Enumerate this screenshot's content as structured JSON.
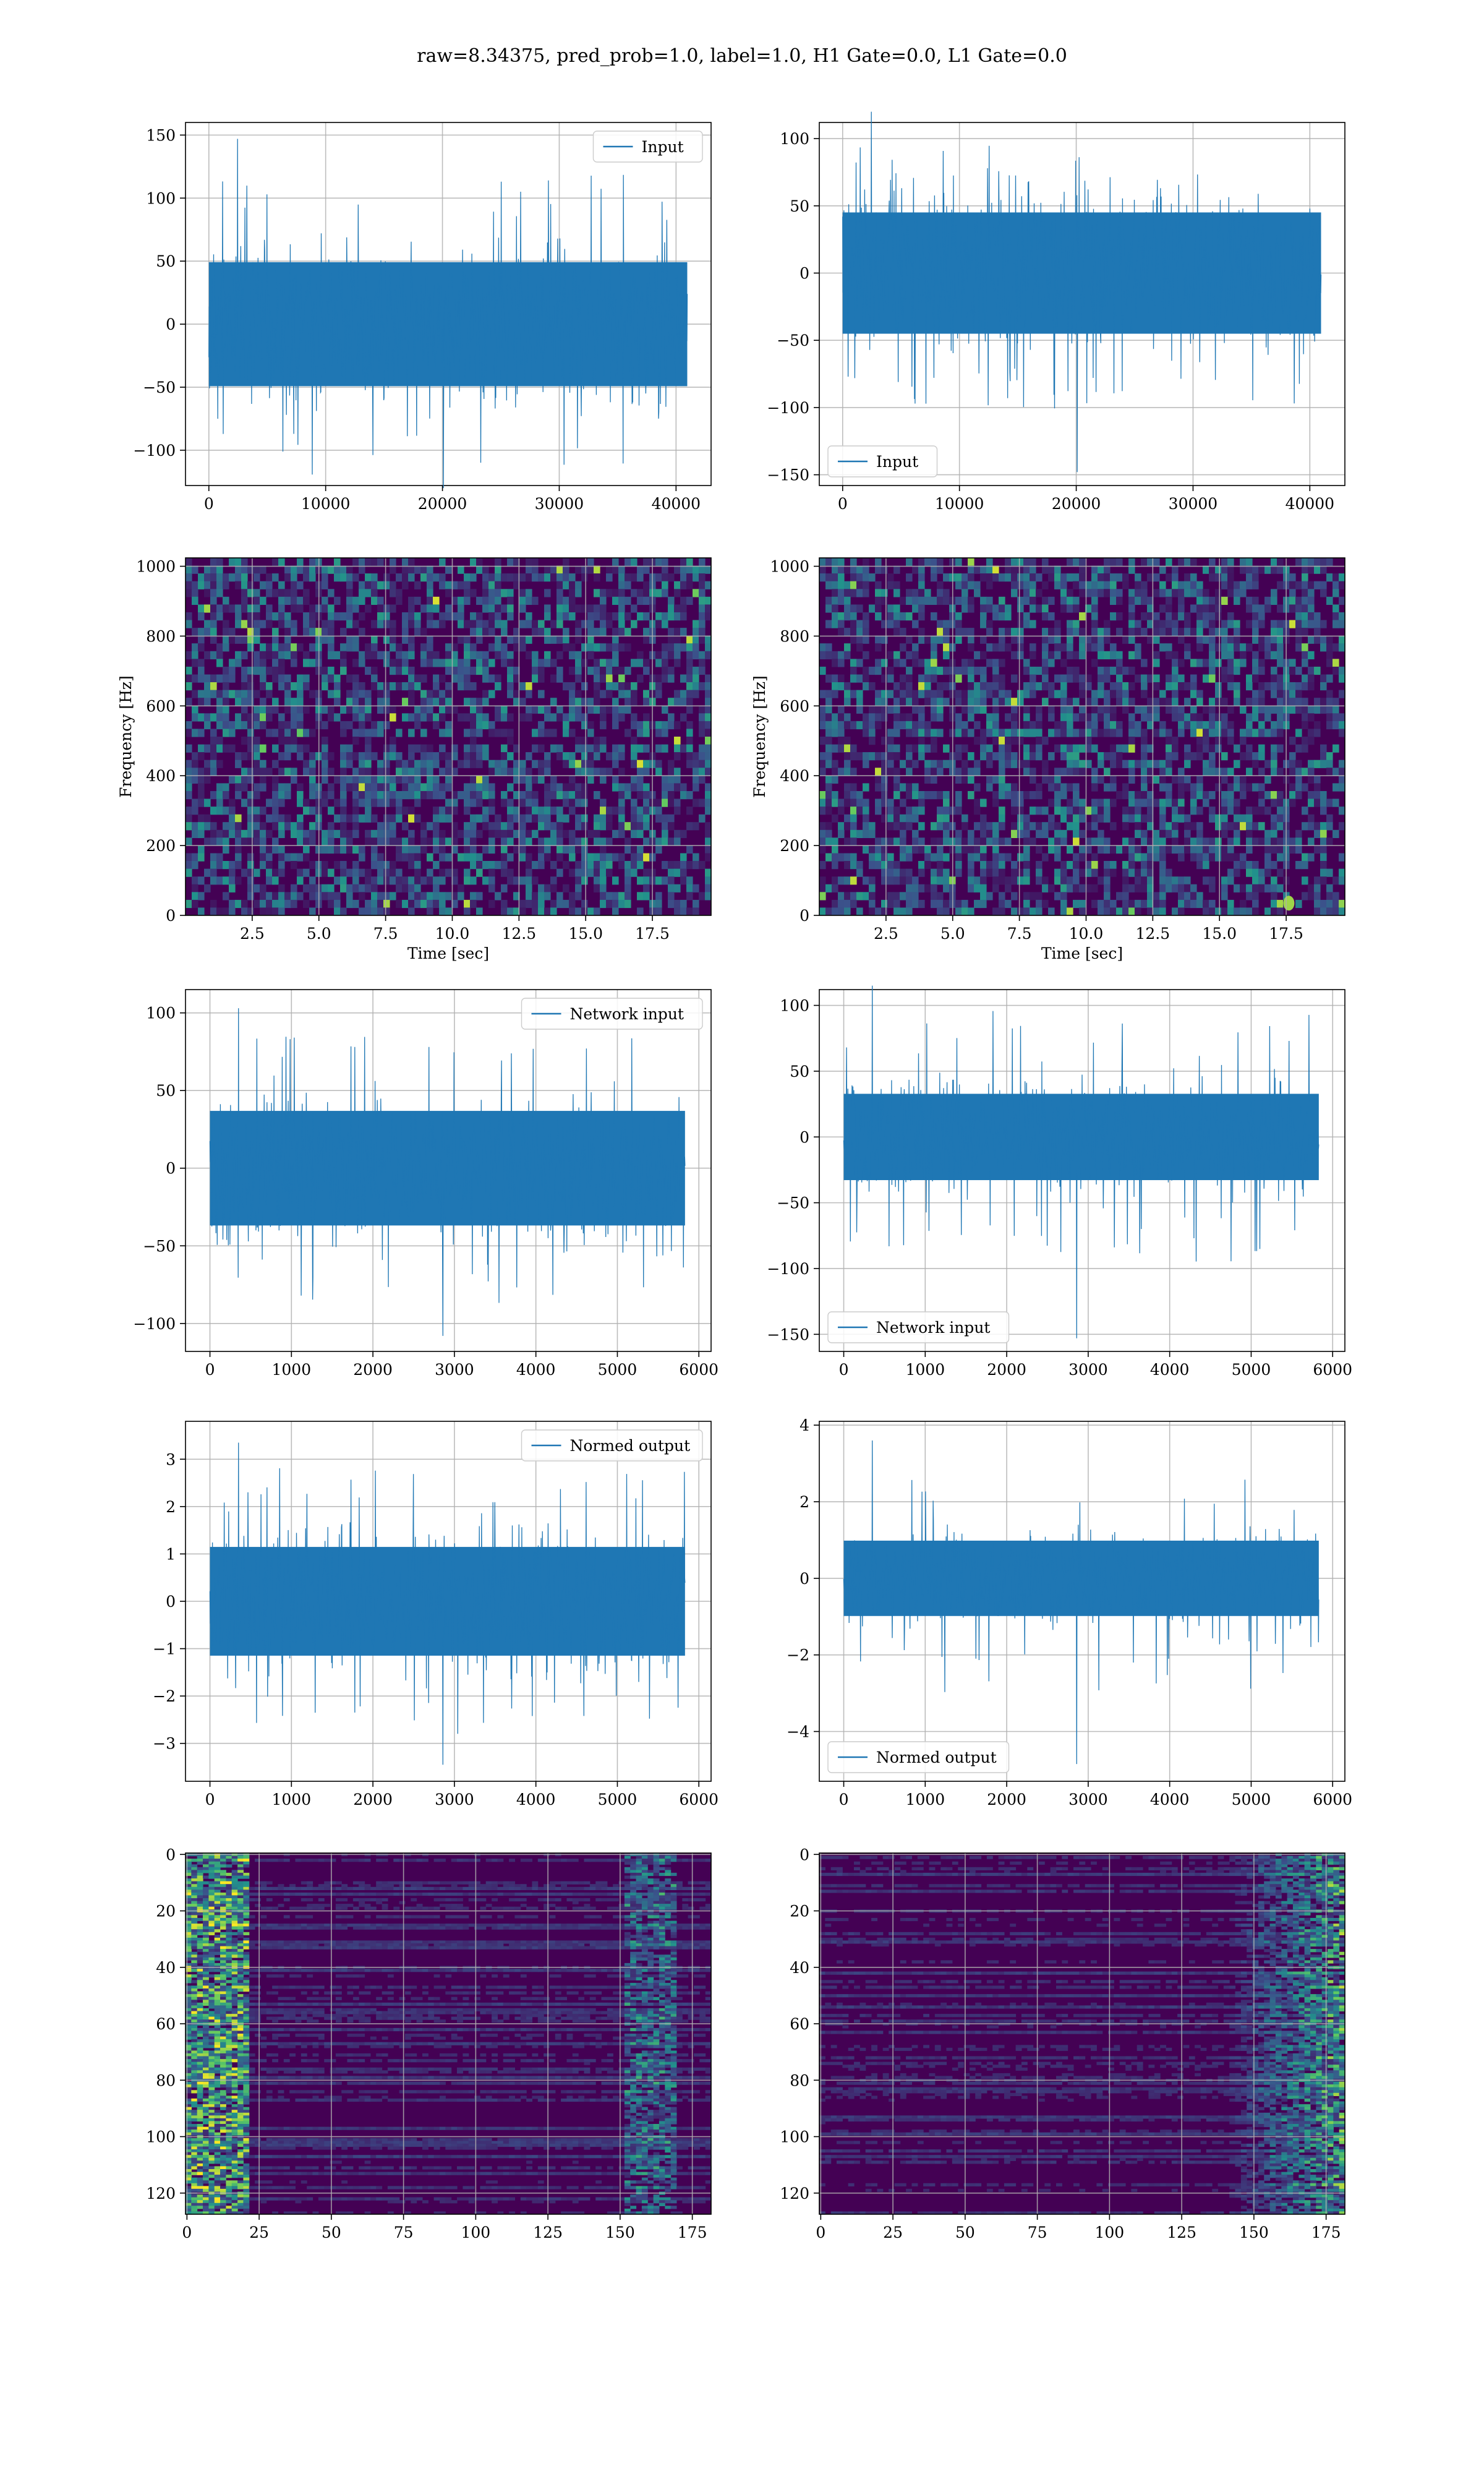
{
  "figure": {
    "title": "raw=8.34375, pred_prob=1.0, label=1.0, H1 Gate=0.0, L1 Gate=0.0"
  },
  "colors": {
    "line": "#1f77b4",
    "grid": "#b0b0b0",
    "viridis_dark": "#440154",
    "viridis_mid": "#21918c",
    "viridis_bright": "#fde725"
  },
  "chart_data": [
    {
      "id": "input_h1",
      "type": "line",
      "series": [
        {
          "name": "Input",
          "envelope_low": -60,
          "envelope_high": 60,
          "peak_max": 147,
          "peak_min": -130
        }
      ],
      "xlim": [
        -2000,
        43000
      ],
      "ylim": [
        -128,
        160
      ],
      "xticks": [
        0,
        10000,
        20000,
        30000,
        40000
      ],
      "yticks": [
        -100,
        -50,
        0,
        50,
        100,
        150
      ],
      "xlabel": "",
      "ylabel": "",
      "legend": "top-right",
      "grid": true
    },
    {
      "id": "input_l1",
      "type": "line",
      "series": [
        {
          "name": "Input",
          "envelope_low": -55,
          "envelope_high": 55,
          "peak_max": 120,
          "peak_min": -148
        }
      ],
      "xlim": [
        -2000,
        43000
      ],
      "ylim": [
        -158,
        112
      ],
      "xticks": [
        0,
        10000,
        20000,
        30000,
        40000
      ],
      "yticks": [
        -150,
        -100,
        -50,
        0,
        50,
        100
      ],
      "xlabel": "",
      "ylabel": "",
      "legend": "bottom-left",
      "grid": true
    },
    {
      "id": "spec_h1",
      "type": "heatmap",
      "xlim": [
        0,
        19.7
      ],
      "ylim": [
        0,
        1024
      ],
      "xticks": [
        2.5,
        5.0,
        7.5,
        10.0,
        12.5,
        15.0,
        17.5
      ],
      "yticks": [
        0,
        200,
        400,
        600,
        800,
        1000
      ],
      "xlabel": "Time [sec]",
      "ylabel": "Frequency [Hz]",
      "grid": true
    },
    {
      "id": "spec_l1",
      "type": "heatmap",
      "xlim": [
        0,
        19.7
      ],
      "ylim": [
        0,
        1024
      ],
      "xticks": [
        2.5,
        5.0,
        7.5,
        10.0,
        12.5,
        15.0,
        17.5
      ],
      "yticks": [
        0,
        200,
        400,
        600,
        800,
        1000
      ],
      "xlabel": "Time [sec]",
      "ylabel": "Frequency [Hz]",
      "grid": true
    },
    {
      "id": "netin_h1",
      "type": "line",
      "series": [
        {
          "name": "Network input",
          "envelope_low": -45,
          "envelope_high": 45,
          "peak_max": 103,
          "peak_min": -108
        }
      ],
      "xlim": [
        -300,
        6150
      ],
      "ylim": [
        -118,
        115
      ],
      "xticks": [
        0,
        1000,
        2000,
        3000,
        4000,
        5000,
        6000
      ],
      "yticks": [
        -100,
        -50,
        0,
        50,
        100
      ],
      "xlabel": "",
      "ylabel": "",
      "legend": "top-right",
      "grid": true
    },
    {
      "id": "netin_l1",
      "type": "line",
      "series": [
        {
          "name": "Network input",
          "envelope_low": -40,
          "envelope_high": 40,
          "peak_max": 115,
          "peak_min": -153
        }
      ],
      "xlim": [
        -300,
        6150
      ],
      "ylim": [
        -163,
        112
      ],
      "xticks": [
        0,
        1000,
        2000,
        3000,
        4000,
        5000,
        6000
      ],
      "yticks": [
        -150,
        -100,
        -50,
        0,
        50,
        100
      ],
      "xlabel": "",
      "ylabel": "",
      "legend": "bottom-left",
      "grid": true
    },
    {
      "id": "normed_h1",
      "type": "line",
      "series": [
        {
          "name": "Normed output",
          "envelope_low": -1.4,
          "envelope_high": 1.4,
          "peak_max": 3.35,
          "peak_min": -3.45
        }
      ],
      "xlim": [
        -300,
        6150
      ],
      "ylim": [
        -3.8,
        3.8
      ],
      "xticks": [
        0,
        1000,
        2000,
        3000,
        4000,
        5000,
        6000
      ],
      "yticks": [
        -3,
        -2,
        -1,
        0,
        1,
        2,
        3
      ],
      "xlabel": "",
      "ylabel": "",
      "legend": "top-right",
      "grid": true
    },
    {
      "id": "normed_l1",
      "type": "line",
      "series": [
        {
          "name": "Normed output",
          "envelope_low": -1.2,
          "envelope_high": 1.2,
          "peak_max": 3.6,
          "peak_min": -4.85
        }
      ],
      "xlim": [
        -300,
        6150
      ],
      "ylim": [
        -5.3,
        4.1
      ],
      "xticks": [
        0,
        1000,
        2000,
        3000,
        4000,
        5000,
        6000
      ],
      "yticks": [
        -4,
        -2,
        0,
        2,
        4
      ],
      "xlabel": "",
      "ylabel": "",
      "legend": "bottom-left",
      "grid": true
    },
    {
      "id": "feat_h1",
      "type": "heatmap",
      "xlim": [
        -0.5,
        181.5
      ],
      "ylim": [
        127.5,
        -0.5
      ],
      "xticks": [
        0,
        25,
        50,
        75,
        100,
        125,
        150,
        175
      ],
      "yticks": [
        0,
        20,
        40,
        60,
        80,
        100,
        120
      ],
      "xlabel": "",
      "ylabel": "",
      "grid": true
    },
    {
      "id": "feat_l1",
      "type": "heatmap",
      "xlim": [
        -0.5,
        181.5
      ],
      "ylim": [
        127.5,
        -0.5
      ],
      "xticks": [
        0,
        25,
        50,
        75,
        100,
        125,
        150,
        175
      ],
      "yticks": [
        0,
        20,
        40,
        60,
        80,
        100,
        120
      ],
      "xlabel": "",
      "ylabel": "",
      "grid": true
    }
  ]
}
